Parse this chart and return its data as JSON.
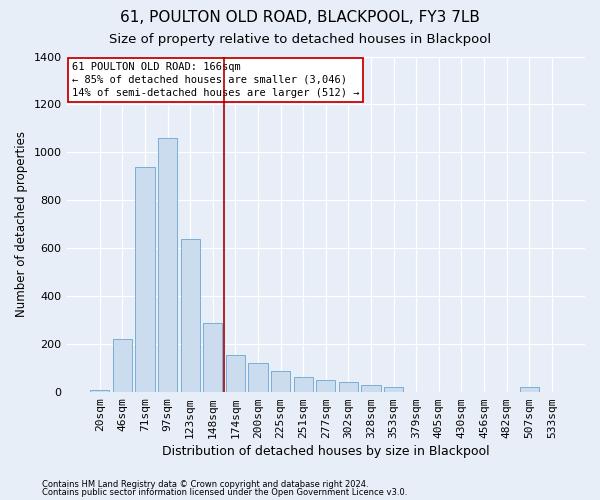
{
  "title": "61, POULTON OLD ROAD, BLACKPOOL, FY3 7LB",
  "subtitle": "Size of property relative to detached houses in Blackpool",
  "xlabel": "Distribution of detached houses by size in Blackpool",
  "ylabel": "Number of detached properties",
  "footnote1": "Contains HM Land Registry data © Crown copyright and database right 2024.",
  "footnote2": "Contains public sector information licensed under the Open Government Licence v3.0.",
  "bar_color": "#ccdcef",
  "bar_edge_color": "#7aaed6",
  "vline_color": "#aa0000",
  "vline_pos": 5.5,
  "annotation_title": "61 POULTON OLD ROAD: 166sqm",
  "annotation_line1": "← 85% of detached houses are smaller (3,046)",
  "annotation_line2": "14% of semi-detached houses are larger (512) →",
  "categories": [
    "20sqm",
    "46sqm",
    "71sqm",
    "97sqm",
    "123sqm",
    "148sqm",
    "174sqm",
    "200sqm",
    "225sqm",
    "251sqm",
    "277sqm",
    "302sqm",
    "328sqm",
    "353sqm",
    "379sqm",
    "405sqm",
    "430sqm",
    "456sqm",
    "482sqm",
    "507sqm",
    "533sqm"
  ],
  "values": [
    8,
    220,
    940,
    1060,
    640,
    290,
    155,
    120,
    90,
    65,
    50,
    42,
    30,
    22,
    0,
    0,
    0,
    0,
    0,
    20,
    0
  ],
  "ylim": [
    0,
    1400
  ],
  "yticks": [
    0,
    200,
    400,
    600,
    800,
    1000,
    1200,
    1400
  ],
  "bg_color": "#e8eef7",
  "grid_color": "#ffffff",
  "title_fontsize": 11,
  "subtitle_fontsize": 9.5,
  "xlabel_fontsize": 9,
  "ylabel_fontsize": 8.5,
  "tick_fontsize": 8,
  "annot_fontsize": 7.5
}
